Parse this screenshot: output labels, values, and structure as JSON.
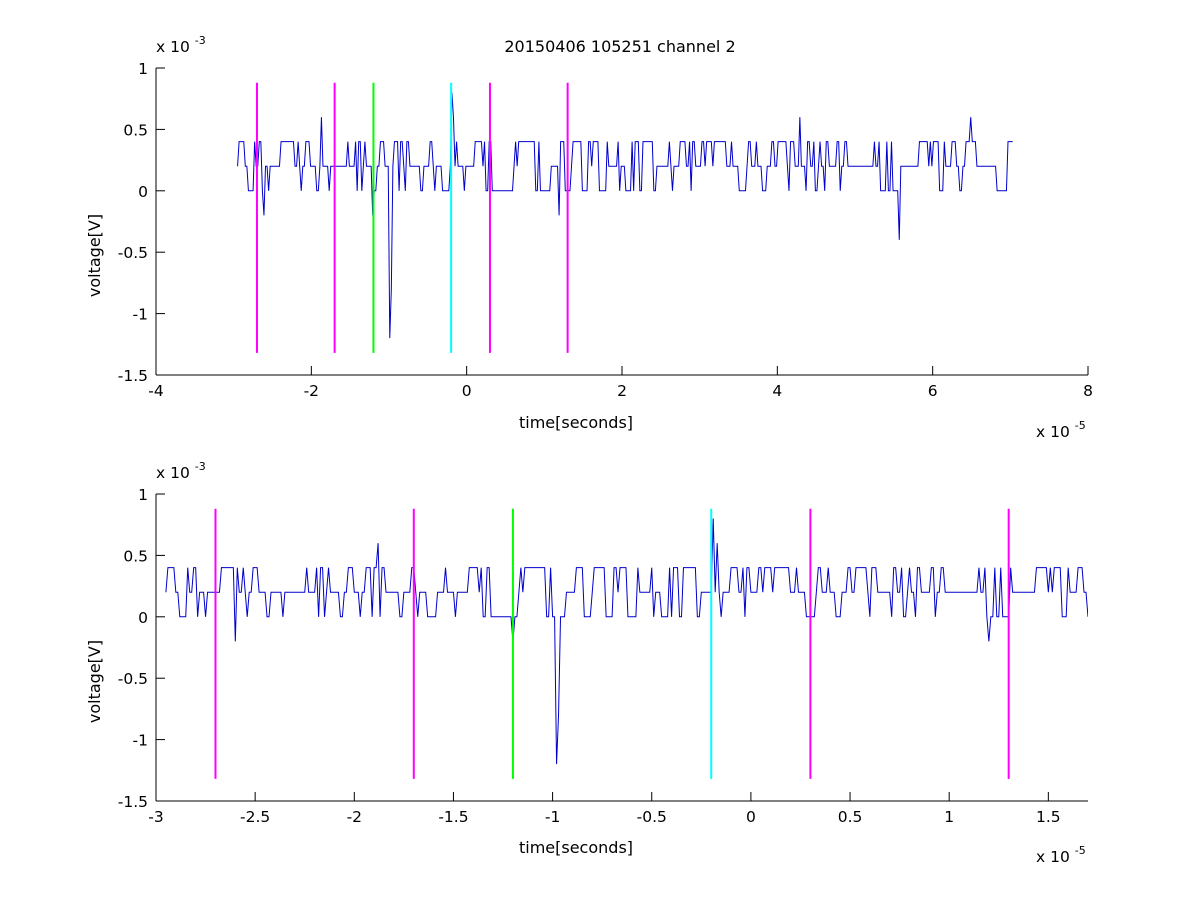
{
  "figure": {
    "title": "20150406 105251 channel 2"
  },
  "chart_data": [
    {
      "type": "line",
      "title": "20150406 105251 channel 2",
      "xlabel": "time[seconds]",
      "ylabel": "voltage[V]",
      "x_multiplier": {
        "base": "x 10",
        "exponent": "-5"
      },
      "y_multiplier": {
        "base": "x 10",
        "exponent": "-3"
      },
      "xlim": [
        -4,
        8
      ],
      "ylim": [
        -1.5,
        1
      ],
      "xticks": [
        -4,
        -2,
        0,
        2,
        4,
        6,
        8
      ],
      "xtick_labels": [
        "-4",
        "-2",
        "0",
        "2",
        "4",
        "6",
        "8"
      ],
      "yticks": [
        -1.5,
        -1,
        -0.5,
        0,
        0.5,
        1
      ],
      "ytick_labels": [
        "-1.5",
        "-1",
        "-0.5",
        "0",
        "0.5",
        "1"
      ],
      "grid": false,
      "signal": {
        "color": "#0000cc",
        "x_start": -2.95,
        "x_end": 7.03,
        "dt": 0.02,
        "seed": 7,
        "spikes": [
          {
            "x": -2.6,
            "y": -0.2
          },
          {
            "x": -1.88,
            "y": 0.6
          },
          {
            "x": -1.2,
            "y": -0.2
          },
          {
            "x": -0.98,
            "y": -1.2
          },
          {
            "x": -0.97,
            "y": -0.8
          },
          {
            "x": -0.19,
            "y": 0.8
          },
          {
            "x": -0.17,
            "y": 0.6
          },
          {
            "x": 1.2,
            "y": -0.2
          },
          {
            "x": 4.3,
            "y": 0.6
          },
          {
            "x": 5.58,
            "y": -0.4
          },
          {
            "x": 6.5,
            "y": 0.6
          }
        ]
      },
      "markers": [
        {
          "x": -2.7,
          "color": "#ff00ff"
        },
        {
          "x": -1.7,
          "color": "#ff00ff"
        },
        {
          "x": -1.2,
          "color": "#00ff00"
        },
        {
          "x": -0.2,
          "color": "#00ffff"
        },
        {
          "x": 0.3,
          "color": "#ff00ff"
        },
        {
          "x": 1.3,
          "color": "#ff00ff"
        }
      ],
      "marker_ylim": [
        -1.32,
        0.88
      ]
    },
    {
      "type": "line",
      "title": "",
      "xlabel": "time[seconds]",
      "ylabel": "voltage[V]",
      "x_multiplier": {
        "base": "x 10",
        "exponent": "-5"
      },
      "y_multiplier": {
        "base": "x 10",
        "exponent": "-3"
      },
      "xlim": [
        -3,
        1.7
      ],
      "ylim": [
        -1.5,
        1
      ],
      "xticks": [
        -3,
        -2.5,
        -2,
        -1.5,
        -1,
        -0.5,
        0,
        0.5,
        1,
        1.5
      ],
      "xtick_labels": [
        "-3",
        "-2.5",
        "-2",
        "-1.5",
        "-1",
        "-0.5",
        "0",
        "0.5",
        "1",
        "1.5"
      ],
      "yticks": [
        -1.5,
        -1,
        -0.5,
        0,
        0.5,
        1
      ],
      "ytick_labels": [
        "-1.5",
        "-1",
        "-0.5",
        "0",
        "0.5",
        "1"
      ],
      "grid": false,
      "signal": {
        "color": "#0000cc",
        "x_start": -2.95,
        "x_end": 1.7,
        "dt": 0.01,
        "seed": 7,
        "spikes": [
          {
            "x": -2.6,
            "y": -0.2
          },
          {
            "x": -1.88,
            "y": 0.6
          },
          {
            "x": -1.2,
            "y": -0.2
          },
          {
            "x": -0.98,
            "y": -1.2
          },
          {
            "x": -0.97,
            "y": -0.8
          },
          {
            "x": -0.19,
            "y": 0.8
          },
          {
            "x": -0.17,
            "y": 0.6
          },
          {
            "x": 1.2,
            "y": -0.2
          }
        ]
      },
      "markers": [
        {
          "x": -2.7,
          "color": "#ff00ff"
        },
        {
          "x": -1.7,
          "color": "#ff00ff"
        },
        {
          "x": -1.2,
          "color": "#00ff00"
        },
        {
          "x": -0.2,
          "color": "#00ffff"
        },
        {
          "x": 0.3,
          "color": "#ff00ff"
        },
        {
          "x": 1.3,
          "color": "#ff00ff"
        }
      ],
      "marker_ylim": [
        -1.32,
        0.88
      ]
    }
  ]
}
